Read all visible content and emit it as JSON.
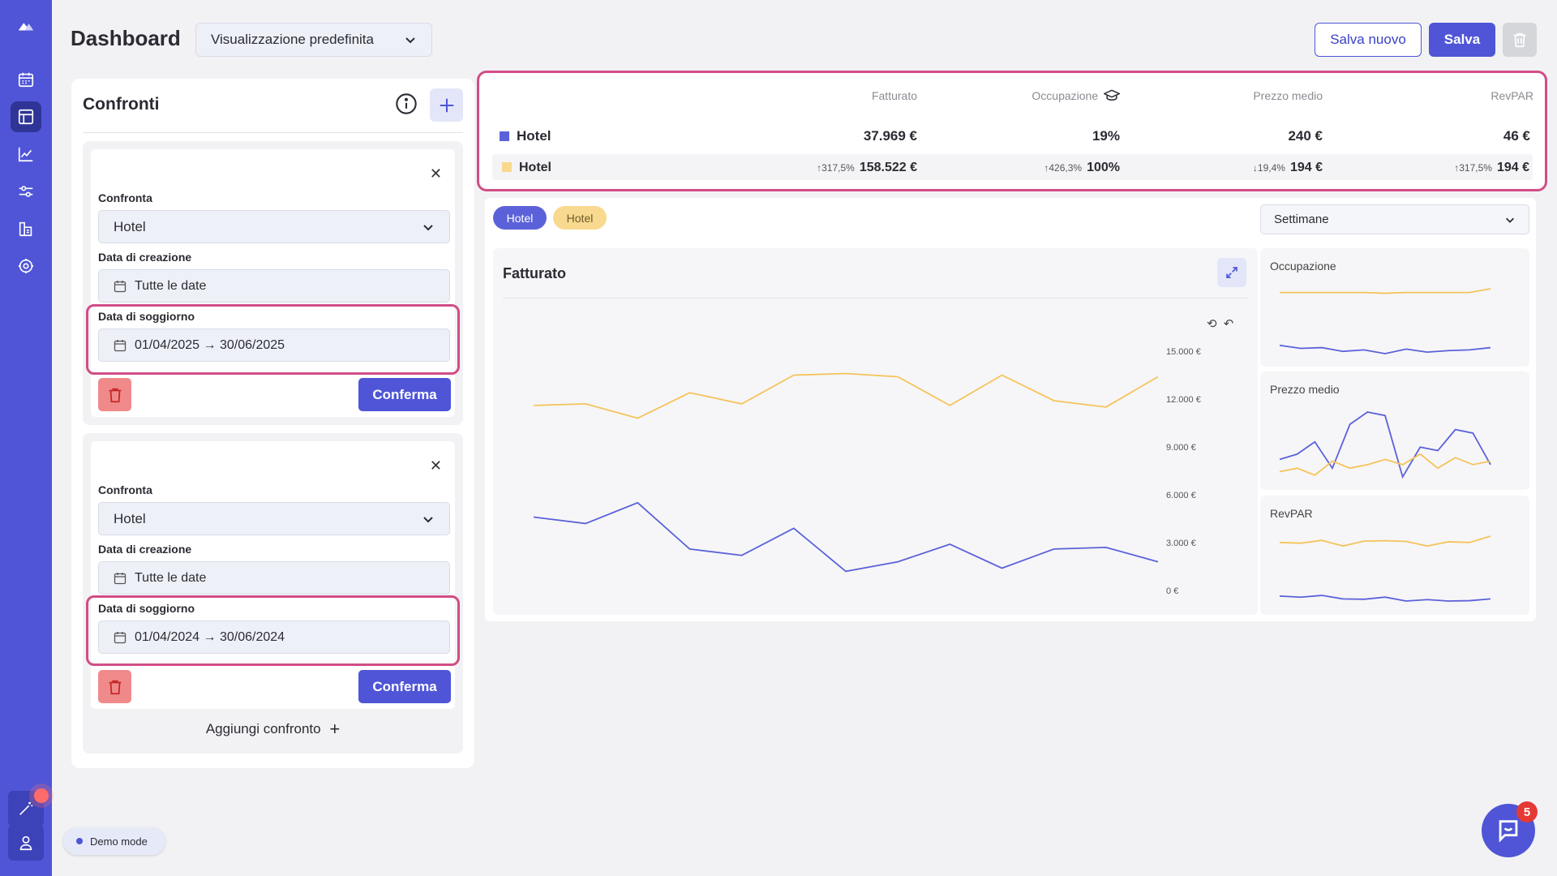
{
  "header": {
    "title": "Dashboard",
    "view_select": "Visualizzazione predefinita",
    "save_new_label": "Salva nuovo",
    "save_label": "Salva"
  },
  "sidebar": {
    "items": [
      {
        "icon": "logo-icon"
      },
      {
        "icon": "calendar-icon"
      },
      {
        "icon": "dashboard-icon",
        "active": true
      },
      {
        "icon": "line-chart-icon"
      },
      {
        "icon": "sliders-icon"
      },
      {
        "icon": "building-icon"
      },
      {
        "icon": "settings-icon"
      }
    ],
    "bottom": [
      {
        "icon": "magic-wand-icon"
      },
      {
        "icon": "user-icon"
      }
    ]
  },
  "comparisons": {
    "title": "Confronti",
    "cards": [
      {
        "compare_label": "Confronta",
        "compare_value": "Hotel",
        "creation_label": "Data di creazione",
        "creation_value": "Tutte le date",
        "stay_label": "Data di soggiorno",
        "stay_value": "01/04/2025 → 30/06/2025",
        "confirm_label": "Conferma"
      },
      {
        "compare_label": "Confronta",
        "compare_value": "Hotel",
        "creation_label": "Data di creazione",
        "creation_value": "Tutte le date",
        "stay_label": "Data di soggiorno",
        "stay_value": "01/04/2024 → 30/06/2024",
        "confirm_label": "Conferma"
      }
    ],
    "add_label": "Aggiungi confronto"
  },
  "kpi": {
    "headers": [
      "Fatturato",
      "Occupazione",
      "Prezzo medio",
      "RevPAR"
    ],
    "rows": [
      {
        "name": "Hotel",
        "color": "#5b62d9",
        "values": [
          "37.969 €",
          "19%",
          "240 €",
          "46 €"
        ],
        "deltas": [
          "",
          "",
          "",
          ""
        ]
      },
      {
        "name": "Hotel",
        "color": "#f7cc6e",
        "values": [
          "158.522 €",
          "100%",
          "194 €",
          "194 €"
        ],
        "deltas": [
          "↑317,5%",
          "↑426,3%",
          "↓19,4%",
          "↑317,5%"
        ]
      }
    ]
  },
  "filters": {
    "tags": [
      {
        "label": "Hotel",
        "bg": "#5b62d9",
        "fg": "#ffffff"
      },
      {
        "label": "Hotel",
        "bg": "#f9d98f",
        "fg": "#6b5a2a"
      }
    ],
    "period": "Settimane"
  },
  "colors": {
    "primary": "#4f55d6",
    "series_a": "#5b62d9",
    "series_b": "#f5c35a",
    "highlight": "#d14d86"
  },
  "chart_data": [
    {
      "type": "line",
      "title": "Fatturato",
      "x": [
        1,
        2,
        3,
        4,
        5,
        6,
        7,
        8,
        9,
        10,
        11,
        12,
        13
      ],
      "ylim": [
        0,
        15000
      ],
      "yticks": [
        "15.000 €",
        "12.000 €",
        "9.000 €",
        "6.000 €",
        "3.000 €",
        "0 €"
      ],
      "ytick_values": [
        15000,
        12000,
        9000,
        6000,
        3000,
        0
      ],
      "series": [
        {
          "color": "#f5c35a",
          "values": [
            11600,
            11700,
            10800,
            12400,
            11700,
            13500,
            13600,
            13400,
            11600,
            13500,
            11900,
            11500,
            13400
          ]
        },
        {
          "color": "#5b62d9",
          "values": [
            4600,
            4200,
            5500,
            2600,
            2200,
            3900,
            1200,
            1800,
            2900,
            1400,
            2600,
            2700,
            1800
          ]
        }
      ]
    },
    {
      "type": "line",
      "title": "Occupazione",
      "series": [
        {
          "color": "#f5c35a",
          "values": [
            95,
            95,
            95,
            95,
            95,
            94,
            95,
            95,
            95,
            95,
            100
          ]
        },
        {
          "color": "#5b62d9",
          "values": [
            25,
            21,
            22,
            17,
            19,
            14,
            20,
            16,
            18,
            19,
            22
          ]
        }
      ]
    },
    {
      "type": "line",
      "title": "Prezzo medio",
      "series": [
        {
          "color": "#5b62d9",
          "values": [
            225,
            228,
            235,
            220,
            245,
            252,
            250,
            215,
            232,
            230,
            242,
            240,
            222
          ]
        },
        {
          "color": "#f5c35a",
          "values": [
            218,
            220,
            216,
            224,
            220,
            222,
            225,
            222,
            228,
            220,
            226,
            222,
            224
          ]
        }
      ]
    },
    {
      "type": "line",
      "title": "RevPAR",
      "series": [
        {
          "color": "#f5c35a",
          "values": [
            190,
            188,
            196,
            180,
            194,
            195,
            193,
            180,
            192,
            190,
            208
          ]
        },
        {
          "color": "#5b62d9",
          "values": [
            38,
            35,
            40,
            30,
            29,
            35,
            24,
            28,
            24,
            25,
            30
          ]
        }
      ]
    }
  ],
  "misc": {
    "demo_label": "Demo mode",
    "help_badge": "5"
  }
}
